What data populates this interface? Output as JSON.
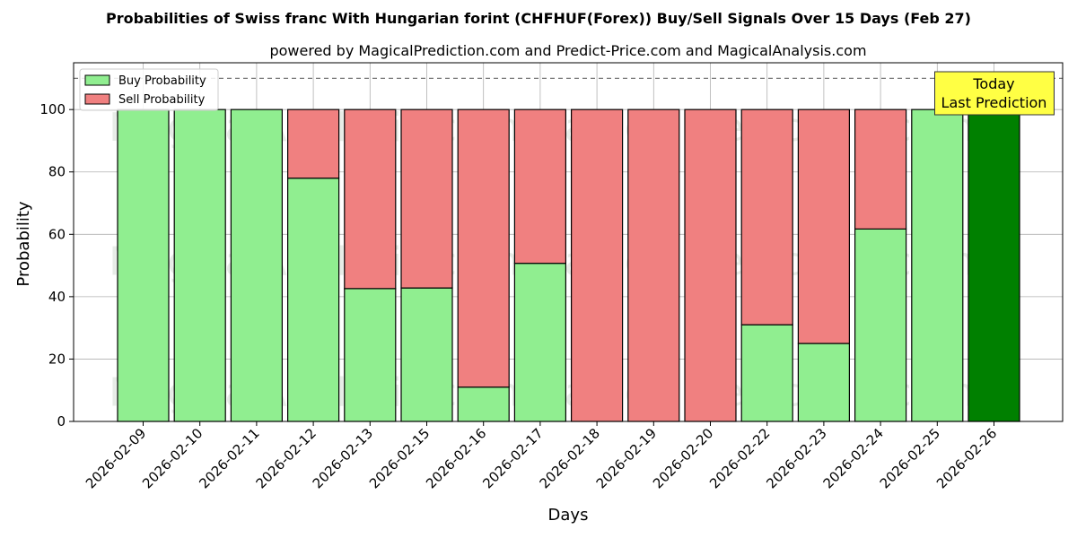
{
  "chart_data": {
    "type": "bar",
    "stacked": true,
    "title": "Probabilities of Swiss franc With Hungarian forint (CHFHUF(Forex)) Buy/Sell Signals Over 15 Days (Feb 27)",
    "subtitle": "powered by MagicalPrediction.com and Predict-Price.com and MagicalAnalysis.com",
    "xlabel": "Days",
    "ylabel": "Probability",
    "ylim": [
      0,
      115
    ],
    "yticks": [
      0,
      20,
      40,
      60,
      80,
      100
    ],
    "threshold_line": 110,
    "grid": true,
    "legend_position": "top-left",
    "categories": [
      "2026-02-09",
      "2026-02-10",
      "2026-02-11",
      "2026-02-12",
      "2026-02-13",
      "2026-02-15",
      "2026-02-16",
      "2026-02-17",
      "2026-02-18",
      "2026-02-19",
      "2026-02-20",
      "2026-02-22",
      "2026-02-23",
      "2026-02-24",
      "2026-02-25",
      "2026-02-26"
    ],
    "series": [
      {
        "name": "Buy Probability",
        "color": "#90ee90",
        "values": [
          100,
          100,
          100,
          78,
          42.6,
          42.8,
          11,
          50.7,
          0,
          0,
          0,
          31,
          25,
          61.7,
          100,
          100
        ]
      },
      {
        "name": "Sell Probability",
        "color": "#f08080",
        "values": [
          0,
          0,
          0,
          22,
          57.4,
          57.2,
          89,
          49.3,
          100,
          100,
          100,
          69,
          75,
          38.3,
          0,
          0
        ]
      }
    ],
    "highlight": {
      "index": 15,
      "color": "#008000"
    },
    "annotation": {
      "line1": "Today",
      "line2": "Last Prediction",
      "background": "#ffff44"
    },
    "watermarks": [
      "MagicalAnalysis.com",
      "MagicalPrediction.com"
    ]
  }
}
